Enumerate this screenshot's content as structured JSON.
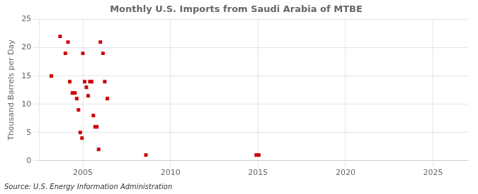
{
  "chart_data": {
    "type": "scatter",
    "title": "Monthly U.S. Imports from Saudi Arabia of MTBE",
    "ylabel": "Thousand Barrels per Day",
    "annotations": [
      "Source: U.S. Energy Information Administration"
    ],
    "color": "#cc0000",
    "marker": "square",
    "grid": true,
    "xlim": [
      2002.5,
      2027
    ],
    "ylim": [
      0,
      25
    ],
    "xticks": [
      2005,
      2010,
      2015,
      2020,
      2025
    ],
    "yticks": [
      0,
      5,
      10,
      15,
      20,
      25
    ],
    "x": [
      2003.2,
      2003.7,
      2004.0,
      2004.15,
      2004.25,
      2004.4,
      2004.55,
      2004.65,
      2004.75,
      2004.85,
      2004.95,
      2005.0,
      2005.1,
      2005.2,
      2005.3,
      2005.4,
      2005.5,
      2005.6,
      2005.7,
      2005.8,
      2005.9,
      2006.0,
      2006.15,
      2006.25,
      2006.4,
      2008.6,
      2014.9,
      2015.05
    ],
    "values": [
      15.0,
      22.0,
      19.0,
      21.0,
      14.0,
      12.0,
      12.0,
      11.0,
      9.0,
      5.0,
      4.0,
      19.0,
      14.0,
      13.0,
      11.5,
      14.0,
      14.0,
      8.0,
      6.0,
      6.0,
      2.0,
      21.0,
      19.0,
      14.0,
      11.0,
      1.0,
      1.0,
      1.0
    ]
  }
}
